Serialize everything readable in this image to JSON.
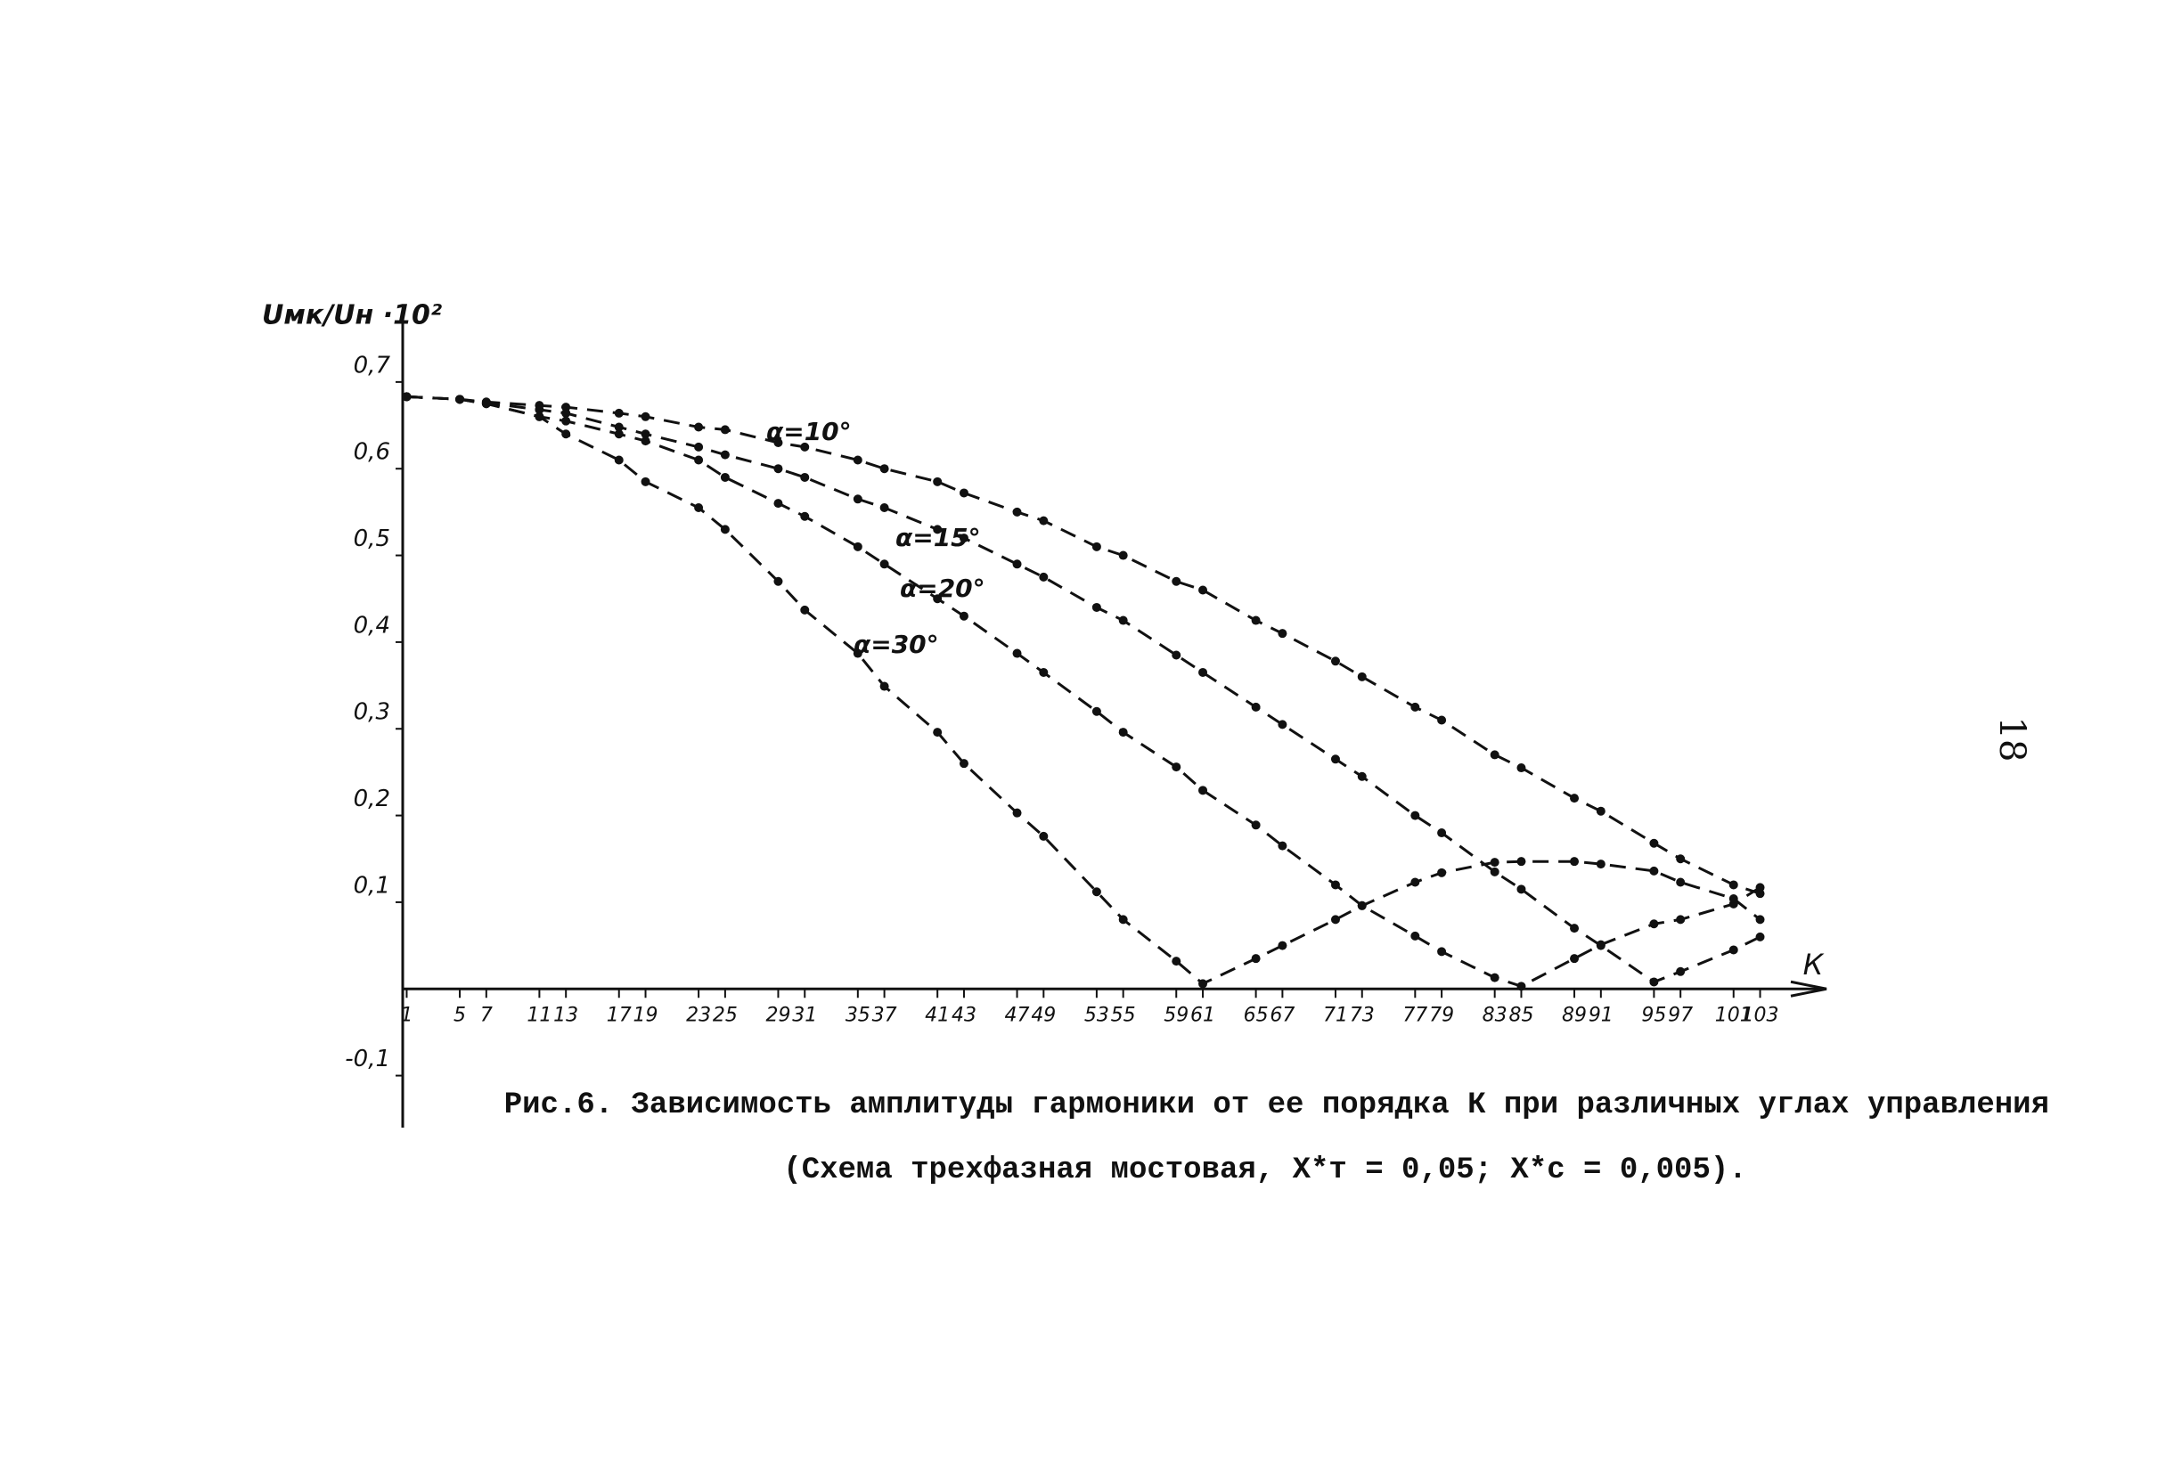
{
  "chart_data": {
    "type": "line",
    "y_label": "Uмк/Uн ·10²",
    "x_label": "К",
    "caption": "Рис.6. Зависимость амплитуды гармоники от ее порядка К при различных углах управления",
    "caption_note": "(Схема трехфазная мостовая,   X*т = 0,05;   X*с = 0,005).",
    "page_number": "18",
    "xlim": [
      0.7,
      108
    ],
    "ylim": [
      -0.16,
      0.78
    ],
    "xticks": [
      1,
      5,
      7,
      11,
      13,
      17,
      19,
      23,
      25,
      29,
      31,
      35,
      37,
      41,
      43,
      47,
      49,
      53,
      55,
      59,
      61,
      65,
      67,
      71,
      73,
      77,
      79,
      83,
      85,
      89,
      91,
      95,
      97,
      101,
      103
    ],
    "yticks": [
      {
        "value": -0.1,
        "label": "-0,1"
      },
      {
        "value": 0.1,
        "label": "0,1"
      },
      {
        "value": 0.2,
        "label": "0,2"
      },
      {
        "value": 0.3,
        "label": "0,3"
      },
      {
        "value": 0.4,
        "label": "0,4"
      },
      {
        "value": 0.5,
        "label": "0,5"
      },
      {
        "value": 0.6,
        "label": "0,6"
      },
      {
        "value": 0.7,
        "label": "0,7"
      }
    ],
    "x": [
      1,
      5,
      7,
      11,
      13,
      17,
      19,
      23,
      25,
      29,
      31,
      35,
      37,
      41,
      43,
      47,
      49,
      53,
      55,
      59,
      61,
      65,
      67,
      71,
      73,
      77,
      79,
      83,
      85,
      89,
      91,
      95,
      97,
      101,
      103
    ],
    "series": [
      {
        "name": "α=10°",
        "color": "#111111",
        "values": [
          0.683,
          0.68,
          0.677,
          0.673,
          0.671,
          0.664,
          0.66,
          0.648,
          0.645,
          0.63,
          0.625,
          0.61,
          0.6,
          0.585,
          0.572,
          0.55,
          0.54,
          0.51,
          0.5,
          0.47,
          0.46,
          0.425,
          0.41,
          0.378,
          0.36,
          0.325,
          0.31,
          0.27,
          0.255,
          0.22,
          0.205,
          0.168,
          0.15,
          0.12,
          0.11
        ]
      },
      {
        "name": "α=15°",
        "color": "#111111",
        "values": [
          0.683,
          0.68,
          0.676,
          0.668,
          0.664,
          0.648,
          0.64,
          0.625,
          0.616,
          0.6,
          0.59,
          0.565,
          0.555,
          0.53,
          0.52,
          0.49,
          0.475,
          0.44,
          0.425,
          0.385,
          0.365,
          0.325,
          0.305,
          0.265,
          0.245,
          0.2,
          0.18,
          0.135,
          0.115,
          0.07,
          0.05,
          0.008,
          0.02,
          0.045,
          0.06
        ]
      },
      {
        "name": "α=20°",
        "color": "#111111",
        "values": [
          0.683,
          0.68,
          0.675,
          0.66,
          0.655,
          0.64,
          0.632,
          0.61,
          0.59,
          0.56,
          0.545,
          0.51,
          0.49,
          0.45,
          0.43,
          0.387,
          0.365,
          0.32,
          0.296,
          0.256,
          0.229,
          0.189,
          0.165,
          0.12,
          0.096,
          0.061,
          0.043,
          0.013,
          0.003,
          0.035,
          0.051,
          0.075,
          0.08,
          0.098,
          0.117
        ]
      },
      {
        "name": "α=30°",
        "color": "#111111",
        "values": [
          0.683,
          0.68,
          0.675,
          0.66,
          0.64,
          0.61,
          0.585,
          0.555,
          0.53,
          0.47,
          0.437,
          0.387,
          0.349,
          0.296,
          0.26,
          0.203,
          0.176,
          0.112,
          0.08,
          0.032,
          0.006,
          0.035,
          0.05,
          0.08,
          0.096,
          0.123,
          0.134,
          0.146,
          0.147,
          0.147,
          0.144,
          0.136,
          0.123,
          0.104,
          0.08
        ]
      }
    ]
  }
}
